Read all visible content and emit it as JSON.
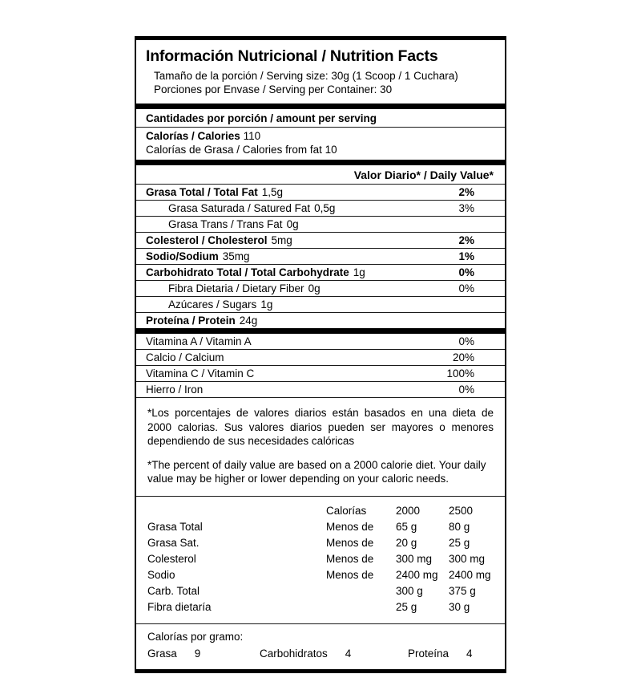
{
  "label": {
    "title": "Información Nutricional / Nutrition Facts",
    "serving_size": "Tamaño de la porción / Serving size: 30g (1 Scoop / 1 Cuchara)",
    "servings_per_container": "Porciones por Envase / Serving per Container: 30",
    "amount_per_serving": "Cantidades por porción / amount per serving",
    "calories_label": "Calorías / Calories",
    "calories_value": "110",
    "calories_from_fat": "Calorías de Grasa / Calories from fat 10",
    "daily_value_header": "Valor Diario* / Daily Value*",
    "nutrients": [
      {
        "label": "Grasa Total / Total Fat",
        "amount": "1,5g",
        "dv": "2%"
      },
      {
        "label": "Grasa Saturada / Satured Fat",
        "amount": "0,5g",
        "dv": "3%"
      },
      {
        "label": "Grasa Trans /  Trans Fat",
        "amount": "0g",
        "dv": ""
      },
      {
        "label": "Colesterol / Cholesterol",
        "amount": "5mg",
        "dv": "2%"
      },
      {
        "label": "Sodio/Sodium",
        "amount": "35mg",
        "dv": "1%"
      },
      {
        "label": "Carbohidrato Total / Total Carbohydrate",
        "amount": "1g",
        "dv": "0%"
      },
      {
        "label": "Fibra Dietaria / Dietary Fiber",
        "amount": "0g",
        "dv": "0%"
      },
      {
        "label": "Azúcares / Sugars",
        "amount": "1g",
        "dv": ""
      },
      {
        "label": "Proteína / Protein",
        "amount": "24g",
        "dv": ""
      }
    ],
    "vitamins": [
      {
        "label": "Vitamina A / Vitamin A",
        "dv": "0%"
      },
      {
        "label": "Calcio / Calcium",
        "dv": "20%"
      },
      {
        "label": "Vitamina C / Vitamin C",
        "dv": "100%"
      },
      {
        "label": "Hierro / Iron",
        "dv": "0%"
      }
    ],
    "footnote_es": "*Los porcentajes de valores diarios están basados en una dieta de 2000 calorias. Sus valores diarios pueden ser mayores o menores dependiendo de sus necesidades calóricas",
    "footnote_en": "*The percent of daily value are based on a 2000 calorie diet. Your daily value may be higher or lower depending on your caloric needs.",
    "reference_table": {
      "col_calories": "Calorías",
      "col_2000": "2000",
      "col_2500": "2500",
      "rows": [
        [
          "Grasa Total",
          "Menos de",
          "65 g",
          "80 g"
        ],
        [
          "Grasa Sat.",
          "Menos de",
          "20 g",
          "25 g"
        ],
        [
          "Colesterol",
          "Menos de",
          "300 mg",
          "300 mg"
        ],
        [
          "Sodio",
          "Menos de",
          "2400 mg",
          "2400 mg"
        ],
        [
          "Carb. Total",
          "",
          "300 g",
          "375 g"
        ],
        [
          "Fibra dietaría",
          "",
          "25 g",
          "30 g"
        ]
      ]
    },
    "calories_per_gram": {
      "title": "Calorías por gramo:",
      "items": [
        {
          "label": "Grasa",
          "value": "9"
        },
        {
          "label": "Carbohidratos",
          "value": "4"
        },
        {
          "label": "Proteína",
          "value": "4"
        }
      ]
    }
  }
}
